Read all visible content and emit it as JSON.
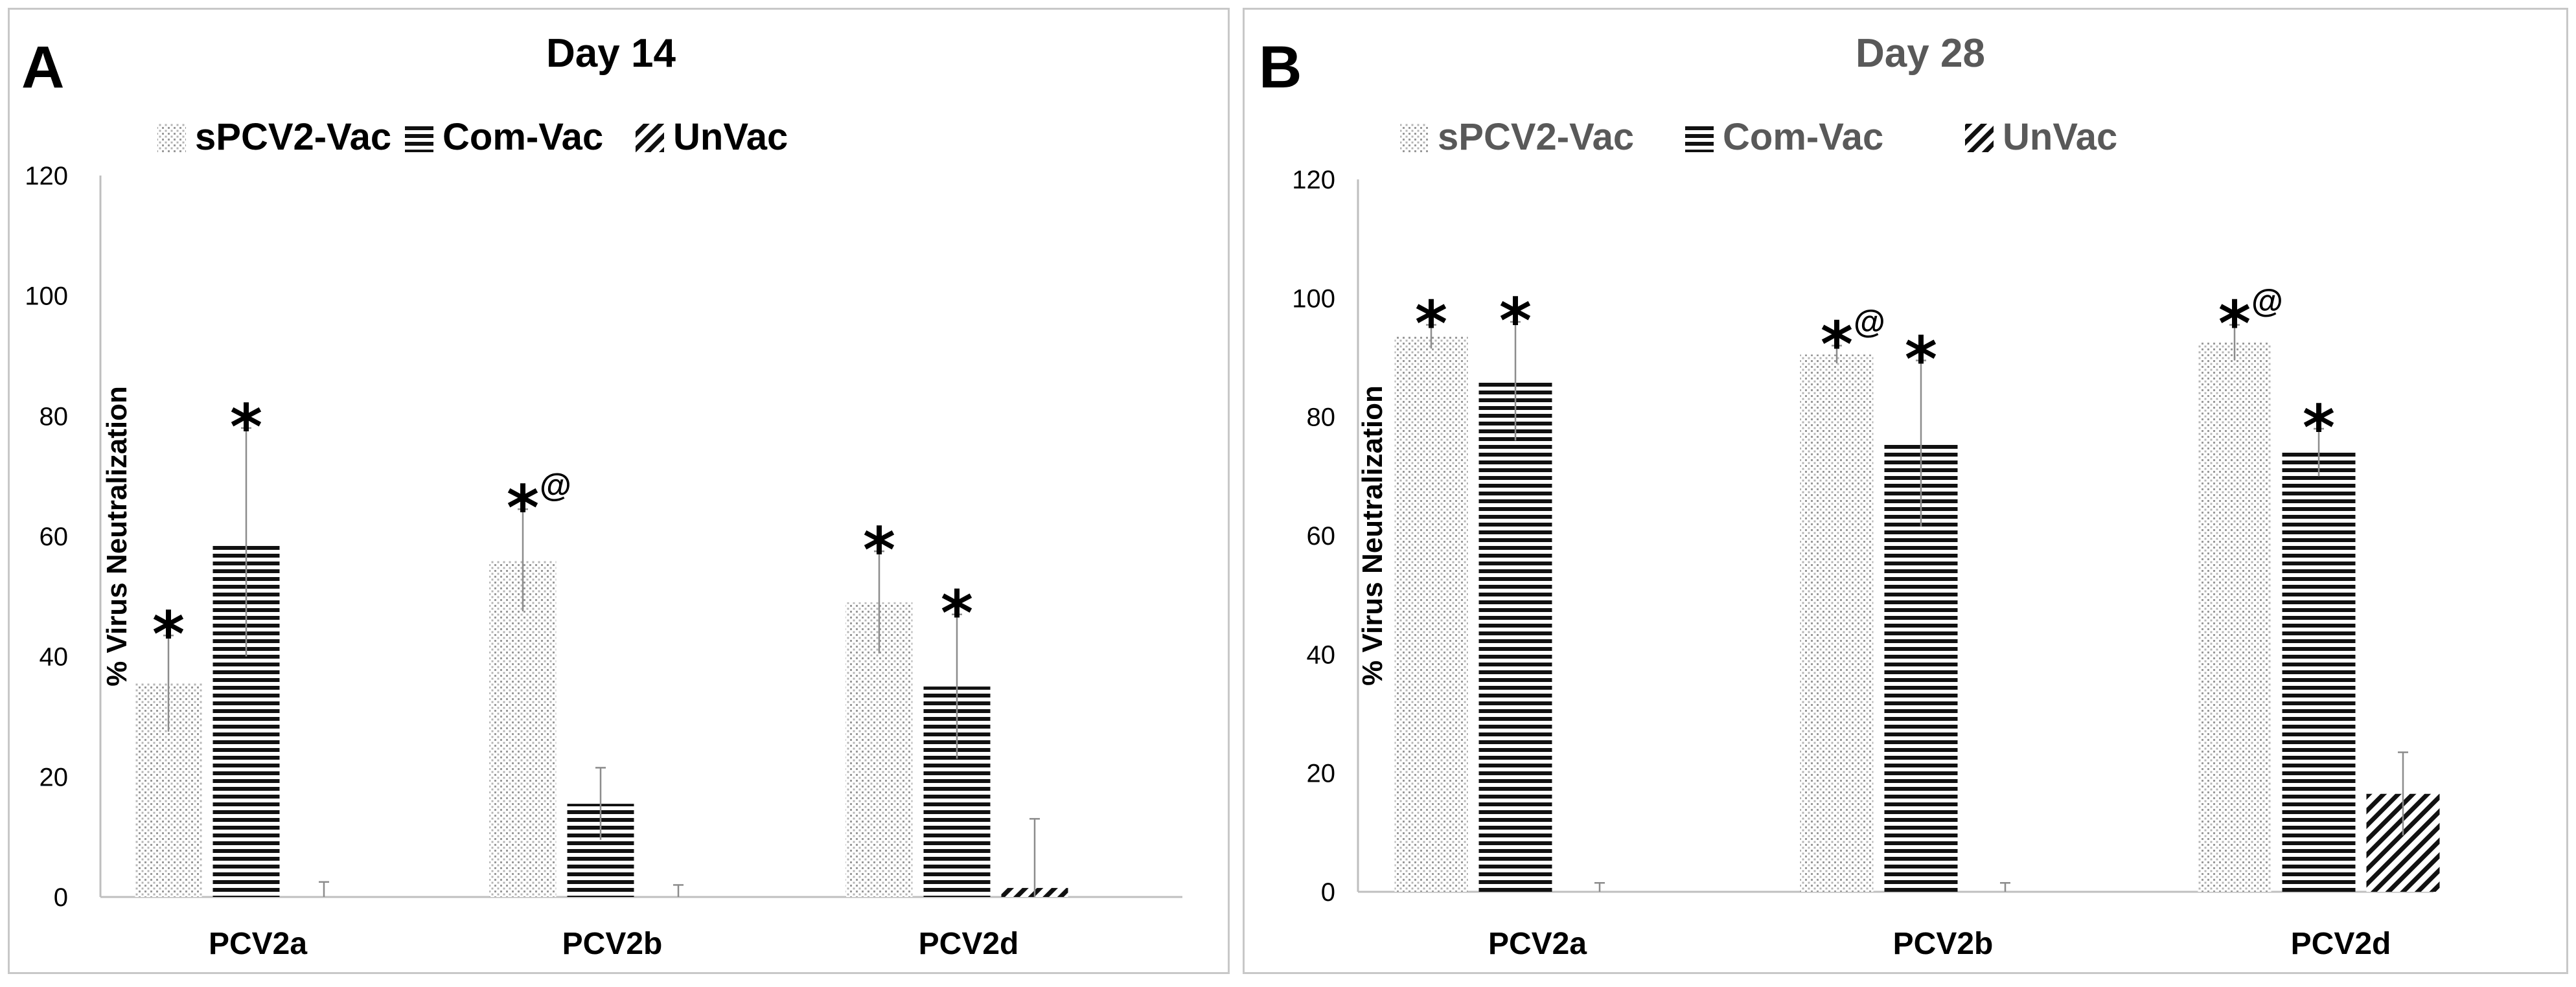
{
  "chart_data": [
    {
      "type": "bar",
      "panel_letter": "A",
      "title": "Day 14",
      "xlabel": "",
      "ylabel": "% Virus Neutralization",
      "ylim": [
        0,
        120
      ],
      "yticks": [
        "0",
        "20",
        "40",
        "60",
        "80",
        "100",
        "120"
      ],
      "categories": [
        "PCV2a",
        "PCV2b",
        "PCV2d"
      ],
      "legend": "top",
      "series": [
        {
          "name": "sPCV2-Vac",
          "pattern": "dots",
          "values": [
            35.5,
            56,
            49
          ],
          "errors": [
            8,
            8.5,
            8.5
          ],
          "marks": [
            "*",
            "*@",
            "*"
          ]
        },
        {
          "name": "Com-Vac",
          "pattern": "hlines",
          "values": [
            59,
            15.5,
            35
          ],
          "errors": [
            19,
            6,
            12
          ],
          "marks": [
            "*",
            "",
            "*"
          ]
        },
        {
          "name": "UnVac",
          "pattern": "diag",
          "values": [
            0,
            0,
            1.5
          ],
          "errors": [
            2.5,
            2,
            11.5
          ],
          "marks": [
            "",
            "",
            ""
          ]
        }
      ],
      "title_color": "#000000",
      "legend_color": "#000000"
    },
    {
      "type": "bar",
      "panel_letter": "B",
      "title": "Day 28",
      "xlabel": "",
      "ylabel": "% Virus Neutralization",
      "ylim": [
        0,
        120
      ],
      "yticks": [
        "0",
        "20",
        "40",
        "60",
        "80",
        "100",
        "120"
      ],
      "categories": [
        "PCV2a",
        "PCV2b",
        "PCV2d"
      ],
      "legend": "top",
      "series": [
        {
          "name": "sPCV2-Vac",
          "pattern": "dots",
          "values": [
            93.5,
            90.5,
            92.5
          ],
          "errors": [
            2,
            1.5,
            3
          ],
          "marks": [
            "*",
            "*@",
            "*@"
          ]
        },
        {
          "name": "Com-Vac",
          "pattern": "hlines",
          "values": [
            86,
            75.5,
            74
          ],
          "errors": [
            10,
            14,
            4
          ],
          "marks": [
            "*",
            "*",
            "*"
          ]
        },
        {
          "name": "UnVac",
          "pattern": "diag",
          "values": [
            0,
            0,
            16.5
          ],
          "errors": [
            1.5,
            1.5,
            7
          ],
          "marks": [
            "",
            "",
            ""
          ]
        }
      ],
      "title_color": "#595959",
      "legend_color": "#595959"
    }
  ]
}
